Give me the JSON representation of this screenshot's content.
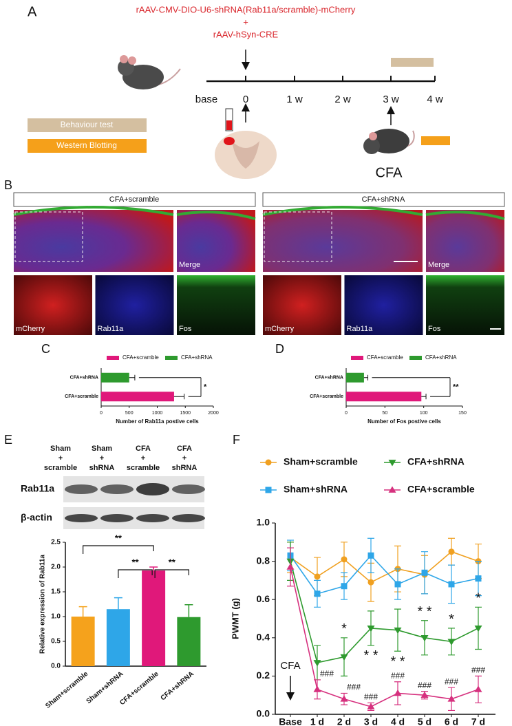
{
  "panel_a": {
    "label": "A",
    "construct": "rAAV-CMV-DIO-U6-shRNA(Rab11a/scramble)-mCherry",
    "plus": "+",
    "cre": "rAAV-hSyn-CRE",
    "timeline": [
      "base",
      "0",
      "1 w",
      "2 w",
      "3 w",
      "4 w"
    ],
    "legend": [
      "Behaviour test",
      "Western Blotting"
    ],
    "cfa": "CFA"
  },
  "panel_b": {
    "label": "B",
    "groups": [
      {
        "title": "CFA+scramble",
        "merge": "Merge",
        "channels": [
          "mCherry",
          "Rab11a",
          "Fos"
        ]
      },
      {
        "title": "CFA+shRNA",
        "merge": "Merge",
        "channels": [
          "mCherry",
          "Rab11a",
          "Fos"
        ]
      }
    ]
  },
  "panel_c_label": "C",
  "panel_d_label": "D",
  "panel_e": {
    "label": "E",
    "lanes": [
      [
        "Sham",
        "+",
        "scramble"
      ],
      [
        "Sham",
        "+",
        "shRNA"
      ],
      [
        "CFA",
        "+",
        "scramble"
      ],
      [
        "CFA",
        "+",
        "shRNA"
      ]
    ],
    "rows": [
      "Rab11a",
      "β-actin"
    ]
  },
  "panel_f_label": "F",
  "chart_data": [
    {
      "type": "bar",
      "orientation": "horizontal",
      "categories": [
        "CFA+shRNA",
        "CFA+scramble"
      ],
      "series": [
        {
          "name": "CFA+scramble",
          "color": "#e0187a",
          "values": [
            null,
            1300
          ],
          "errors": [
            null,
            180
          ]
        },
        {
          "name": "CFA+shRNA",
          "color": "#2e9a2e",
          "values": [
            500,
            null
          ],
          "errors": [
            100,
            null
          ]
        }
      ],
      "xlim": [
        0,
        2000
      ],
      "xticks": [
        0,
        500,
        1000,
        1500,
        2000
      ],
      "xlabel": "Number of Rab11a postive cells",
      "significance": "*"
    },
    {
      "type": "bar",
      "orientation": "horizontal",
      "categories": [
        "CFA+shRNA",
        "CFA+scramble"
      ],
      "series": [
        {
          "name": "CFA+scramble",
          "color": "#e0187a",
          "values": [
            null,
            97
          ],
          "errors": [
            null,
            6
          ]
        },
        {
          "name": "CFA+shRNA",
          "color": "#2e9a2e",
          "values": [
            23,
            null
          ],
          "errors": [
            5,
            null
          ]
        }
      ],
      "xlim": [
        0,
        150
      ],
      "xticks": [
        0,
        50,
        100,
        150
      ],
      "xlabel": "Number of Fos postive cells",
      "significance": "**"
    },
    {
      "type": "bar",
      "orientation": "vertical",
      "categories": [
        "Sham+scramble",
        "Sham+shRNA",
        "CFA+scramble",
        "CFA+shRNA"
      ],
      "values": [
        1.0,
        1.15,
        1.93,
        0.99
      ],
      "errors": [
        0.2,
        0.23,
        0.07,
        0.25
      ],
      "colors": [
        "#f5a21c",
        "#2ea6e8",
        "#e0187a",
        "#2e9a2e"
      ],
      "ylim": [
        0,
        2.5
      ],
      "yticks": [
        {
          "value": 0,
          "label": "0.0"
        },
        0.5,
        {
          "value": 1,
          "label": "1.0"
        },
        1.5,
        {
          "value": 2,
          "label": "2.0"
        },
        2.5
      ],
      "ylabel": "Relative expression of Rab11a",
      "significance": [
        "**",
        "**",
        "**"
      ]
    },
    {
      "type": "line",
      "categories": [
        "Base",
        "1 d",
        "2 d",
        "3 d",
        "4 d",
        "5 d",
        "6 d",
        "7 d"
      ],
      "series": [
        {
          "name": "Sham+scramble",
          "color": "#f0a020",
          "marker": "circle",
          "values": [
            0.82,
            0.72,
            0.81,
            0.69,
            0.76,
            0.73,
            0.85,
            0.8
          ],
          "errors": [
            0.08,
            0.1,
            0.09,
            0.1,
            0.12,
            0.1,
            0.07,
            0.09
          ]
        },
        {
          "name": "Sham+shRNA",
          "color": "#2ea6e8",
          "marker": "square",
          "values": [
            0.83,
            0.63,
            0.67,
            0.83,
            0.68,
            0.74,
            0.68,
            0.71
          ],
          "errors": [
            0.08,
            0.07,
            0.07,
            0.09,
            0.08,
            0.11,
            0.1,
            0.09
          ]
        },
        {
          "name": "CFA+shRNA",
          "color": "#2e9a2e",
          "marker": "triangle-down",
          "values": [
            0.8,
            0.27,
            0.3,
            0.45,
            0.44,
            0.4,
            0.38,
            0.45
          ],
          "errors": [
            0.1,
            0.09,
            0.1,
            0.09,
            0.11,
            0.09,
            0.07,
            0.11
          ]
        },
        {
          "name": "CFA+scramble",
          "color": "#d6307e",
          "marker": "triangle-up",
          "values": [
            0.77,
            0.13,
            0.08,
            0.04,
            0.11,
            0.1,
            0.08,
            0.13
          ],
          "errors": [
            0.1,
            0.05,
            0.03,
            0.02,
            0.06,
            0.02,
            0.06,
            0.07
          ]
        }
      ],
      "ylim": [
        0,
        1.0
      ],
      "yticks": [
        {
          "value": 0,
          "label": "0.0"
        },
        0.2,
        0.4,
        0.6,
        0.8,
        {
          "value": 1,
          "label": "1.0"
        }
      ],
      "ylabel": "PWMT (g)",
      "annotation": "CFA",
      "sig_upper": [
        null,
        null,
        "*",
        null,
        null,
        "* *",
        "*",
        "*"
      ],
      "sig_lower": [
        null,
        null,
        null,
        "* *",
        "* *",
        null,
        null,
        null
      ],
      "sig_hash": [
        null,
        "###",
        "###",
        "###",
        "###",
        "###",
        "###",
        "###"
      ]
    }
  ]
}
